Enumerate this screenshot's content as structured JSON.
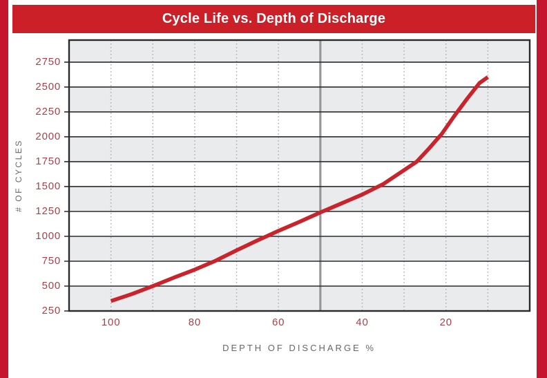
{
  "page": {
    "background_color": "#ffffff",
    "side_border_color": "#c5152f"
  },
  "header": {
    "title": "Cycle Life vs. Depth of Discharge",
    "bg_color": "#cb2027",
    "text_color": "#ffffff"
  },
  "chart_data": {
    "type": "line",
    "title": "Cycle Life vs. Depth of Discharge",
    "xlabel": "DEPTH OF DISCHARGE %",
    "ylabel": "# OF CYCLES",
    "x_axis": {
      "min": 0,
      "max": 110,
      "reversed": true,
      "tick_labels": [
        100,
        80,
        60,
        40,
        20
      ],
      "dotted_gridlines": [
        100,
        90,
        80,
        70,
        60,
        50,
        40,
        30,
        20,
        10
      ],
      "reference_line": 50
    },
    "y_axis": {
      "min": 250,
      "max": 2972,
      "tick_labels": [
        250,
        500,
        750,
        1000,
        1250,
        1500,
        1750,
        2000,
        2250,
        2500,
        2750
      ]
    },
    "gray_bands": [
      [
        250,
        500
      ],
      [
        750,
        1000
      ],
      [
        1250,
        1500
      ],
      [
        1750,
        2000
      ],
      [
        2250,
        2500
      ],
      [
        2750,
        2972
      ]
    ],
    "series": [
      {
        "name": "cycle-life-curve",
        "color": "#c9242b",
        "points": [
          [
            100,
            350
          ],
          [
            95,
            420
          ],
          [
            90,
            500
          ],
          [
            85,
            585
          ],
          [
            80,
            665
          ],
          [
            75,
            755
          ],
          [
            70,
            860
          ],
          [
            65,
            960
          ],
          [
            60,
            1055
          ],
          [
            55,
            1145
          ],
          [
            50,
            1240
          ],
          [
            45,
            1330
          ],
          [
            40,
            1420
          ],
          [
            35,
            1525
          ],
          [
            30,
            1665
          ],
          [
            27,
            1750
          ],
          [
            24,
            1885
          ],
          [
            21,
            2030
          ],
          [
            18,
            2210
          ],
          [
            15,
            2380
          ],
          [
            12,
            2540
          ],
          [
            10,
            2600
          ]
        ]
      }
    ],
    "colors": {
      "band_gray": "#eaebed",
      "gridline": "#2a2a2c",
      "dotted_gridline": "#a9abae",
      "reference_line": "#96989c",
      "tick_text": "#ad4046",
      "axis_label_text": "#65676b"
    },
    "grid": "on",
    "legend": "none"
  }
}
